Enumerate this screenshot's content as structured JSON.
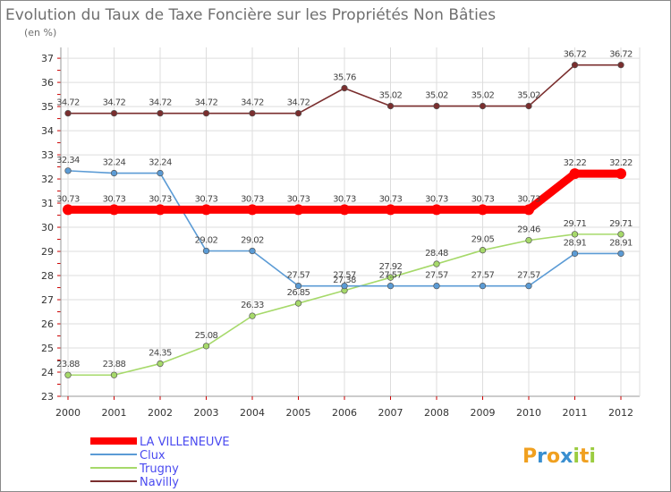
{
  "chart_data": {
    "type": "line",
    "title": "Evolution du Taux de Taxe Foncière sur les Propriétés Non Bâties",
    "subtitle": "(en %)",
    "xlabel": "",
    "ylabel": "",
    "categories": [
      "2000",
      "2001",
      "2002",
      "2003",
      "2004",
      "2005",
      "2006",
      "2007",
      "2008",
      "2009",
      "2010",
      "2011",
      "2012"
    ],
    "yticks": [
      "23",
      "24",
      "25",
      "26",
      "27",
      "28",
      "29",
      "30",
      "31",
      "32",
      "33",
      "34",
      "35",
      "36",
      "37"
    ],
    "ylim": [
      23,
      37.3
    ],
    "grid": true,
    "legend_position": "bottom-left",
    "series": [
      {
        "name": "LA VILLENEUVE",
        "color": "#ff0000",
        "values": [
          30.73,
          30.73,
          30.73,
          30.73,
          30.73,
          30.73,
          30.73,
          30.73,
          30.73,
          30.73,
          30.73,
          32.22,
          32.22
        ],
        "labels": [
          "30.73",
          "30.73",
          "30.73",
          "30.73",
          "30.73",
          "30.73",
          "30.73",
          "30.73",
          "30.73",
          "30.73",
          "30.73",
          "32.22",
          "32.22"
        ]
      },
      {
        "name": "Clux",
        "color": "#5b9bd5",
        "values": [
          32.34,
          32.24,
          32.24,
          29.02,
          29.02,
          27.57,
          27.57,
          27.57,
          27.57,
          27.57,
          27.57,
          28.91,
          28.91
        ],
        "labels": [
          "32.34",
          "32.24",
          "32.24",
          "29.02",
          "29.02",
          "27.57",
          "27.57",
          "27.57",
          "27.57",
          "27.57",
          "27.57",
          "28.91",
          "28.91"
        ]
      },
      {
        "name": "Trugny",
        "color": "#a6d96a",
        "values": [
          23.88,
          23.88,
          24.35,
          25.08,
          26.33,
          26.85,
          27.38,
          27.92,
          28.48,
          29.05,
          29.46,
          29.71,
          29.71
        ],
        "labels": [
          "23.88",
          "23.88",
          "24.35",
          "25.08",
          "26.33",
          "26.85",
          "27.38",
          "27.92",
          "28.48",
          "29.05",
          "29.46",
          "29.71",
          "29.71"
        ]
      },
      {
        "name": "Navilly",
        "color": "#7a2e2e",
        "values": [
          34.72,
          34.72,
          34.72,
          34.72,
          34.72,
          34.72,
          35.76,
          35.02,
          35.02,
          35.02,
          35.02,
          36.72,
          36.72
        ],
        "labels": [
          "34.72",
          "34.72",
          "34.72",
          "34.72",
          "34.72",
          "34.72",
          "35.76",
          "35.02",
          "35.02",
          "35.02",
          "35.02",
          "36.72",
          "36.72"
        ]
      }
    ]
  },
  "brand": {
    "letters": [
      "P",
      "r",
      "o",
      "x",
      "i",
      "t",
      "i"
    ],
    "colors": [
      "#f0a020",
      "#3a8fd0",
      "#f0a020",
      "#3a8fd0",
      "#9bcc40",
      "#f0a020",
      "#9bcc40"
    ]
  }
}
